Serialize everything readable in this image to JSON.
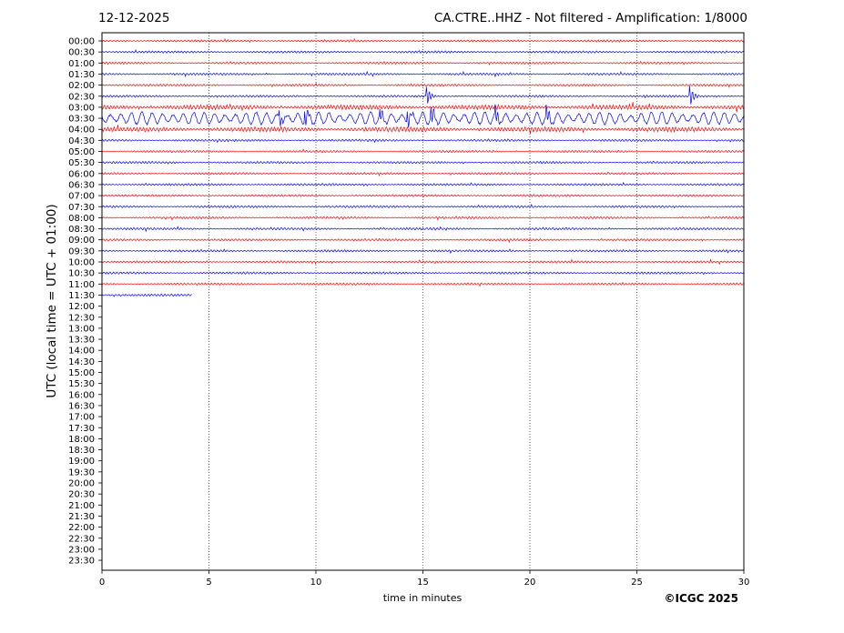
{
  "header": {
    "date": "12-12-2025",
    "station": "CA.CTRE..HHZ - Not filtered - Amplification: 1/8000"
  },
  "footer": {
    "copyright": "©ICGC 2025"
  },
  "colors": {
    "even_trace": "#ff0000",
    "odd_trace": "#0000ff",
    "axis": "#000000",
    "grid": "#000000"
  },
  "chart_data": {
    "type": "line",
    "title": "CA.CTRE..HHZ - Not filtered - Amplification: 1/8000",
    "xlabel": "time in minutes",
    "ylabel": "UTC (local time = UTC + 01:00)",
    "xlim": [
      0,
      30
    ],
    "xticks": [
      "0",
      "5",
      "10",
      "15",
      "20",
      "25",
      "30"
    ],
    "grid": "vertical dotted lines at each x tick",
    "row_labels": [
      "00:00",
      "00:30",
      "01:00",
      "01:30",
      "02:00",
      "02:30",
      "03:00",
      "03:30",
      "04:00",
      "04:30",
      "05:00",
      "05:30",
      "06:00",
      "06:30",
      "07:00",
      "07:30",
      "08:00",
      "08:30",
      "09:00",
      "09:30",
      "10:00",
      "10:30",
      "11:00",
      "11:30",
      "12:00",
      "12:30",
      "13:00",
      "13:30",
      "14:00",
      "14:30",
      "15:00",
      "15:30",
      "16:00",
      "16:30",
      "17:00",
      "17:30",
      "18:00",
      "18:30",
      "19:00",
      "19:30",
      "20:00",
      "20:30",
      "21:00",
      "21:30",
      "22:00",
      "22:30",
      "23:00",
      "23:30"
    ],
    "series": [
      {
        "row": "00:00",
        "color": "red",
        "end_minute": 30,
        "amplitude": "low"
      },
      {
        "row": "00:30",
        "color": "blue",
        "end_minute": 30,
        "amplitude": "low"
      },
      {
        "row": "01:00",
        "color": "red",
        "end_minute": 30,
        "amplitude": "low"
      },
      {
        "row": "01:30",
        "color": "blue",
        "end_minute": 30,
        "amplitude": "low"
      },
      {
        "row": "02:00",
        "color": "red",
        "end_minute": 30,
        "amplitude": "low"
      },
      {
        "row": "02:30",
        "color": "blue",
        "end_minute": 30,
        "amplitude": "low",
        "events_minutes": [
          15.2,
          27.5
        ]
      },
      {
        "row": "03:00",
        "color": "red",
        "end_minute": 30,
        "amplitude": "medium"
      },
      {
        "row": "03:30",
        "color": "blue",
        "end_minute": 30,
        "amplitude": "high",
        "events_minutes": [
          8.3,
          9.5,
          13.0,
          14.3,
          15.4,
          18.4,
          20.8
        ]
      },
      {
        "row": "04:00",
        "color": "red",
        "end_minute": 30,
        "amplitude": "medium"
      },
      {
        "row": "04:30",
        "color": "blue",
        "end_minute": 30,
        "amplitude": "low"
      },
      {
        "row": "05:00",
        "color": "red",
        "end_minute": 30,
        "amplitude": "low"
      },
      {
        "row": "05:30",
        "color": "blue",
        "end_minute": 30,
        "amplitude": "low"
      },
      {
        "row": "06:00",
        "color": "red",
        "end_minute": 30,
        "amplitude": "low"
      },
      {
        "row": "06:30",
        "color": "blue",
        "end_minute": 30,
        "amplitude": "low"
      },
      {
        "row": "07:00",
        "color": "red",
        "end_minute": 30,
        "amplitude": "low"
      },
      {
        "row": "07:30",
        "color": "blue",
        "end_minute": 30,
        "amplitude": "low"
      },
      {
        "row": "08:00",
        "color": "red",
        "end_minute": 30,
        "amplitude": "low"
      },
      {
        "row": "08:30",
        "color": "blue",
        "end_minute": 30,
        "amplitude": "low"
      },
      {
        "row": "09:00",
        "color": "red",
        "end_minute": 30,
        "amplitude": "low"
      },
      {
        "row": "09:30",
        "color": "blue",
        "end_minute": 30,
        "amplitude": "low"
      },
      {
        "row": "10:00",
        "color": "red",
        "end_minute": 30,
        "amplitude": "low"
      },
      {
        "row": "10:30",
        "color": "blue",
        "end_minute": 30,
        "amplitude": "low"
      },
      {
        "row": "11:00",
        "color": "red",
        "end_minute": 30,
        "amplitude": "low"
      },
      {
        "row": "11:30",
        "color": "blue",
        "end_minute": 4.2,
        "amplitude": "low"
      }
    ]
  }
}
